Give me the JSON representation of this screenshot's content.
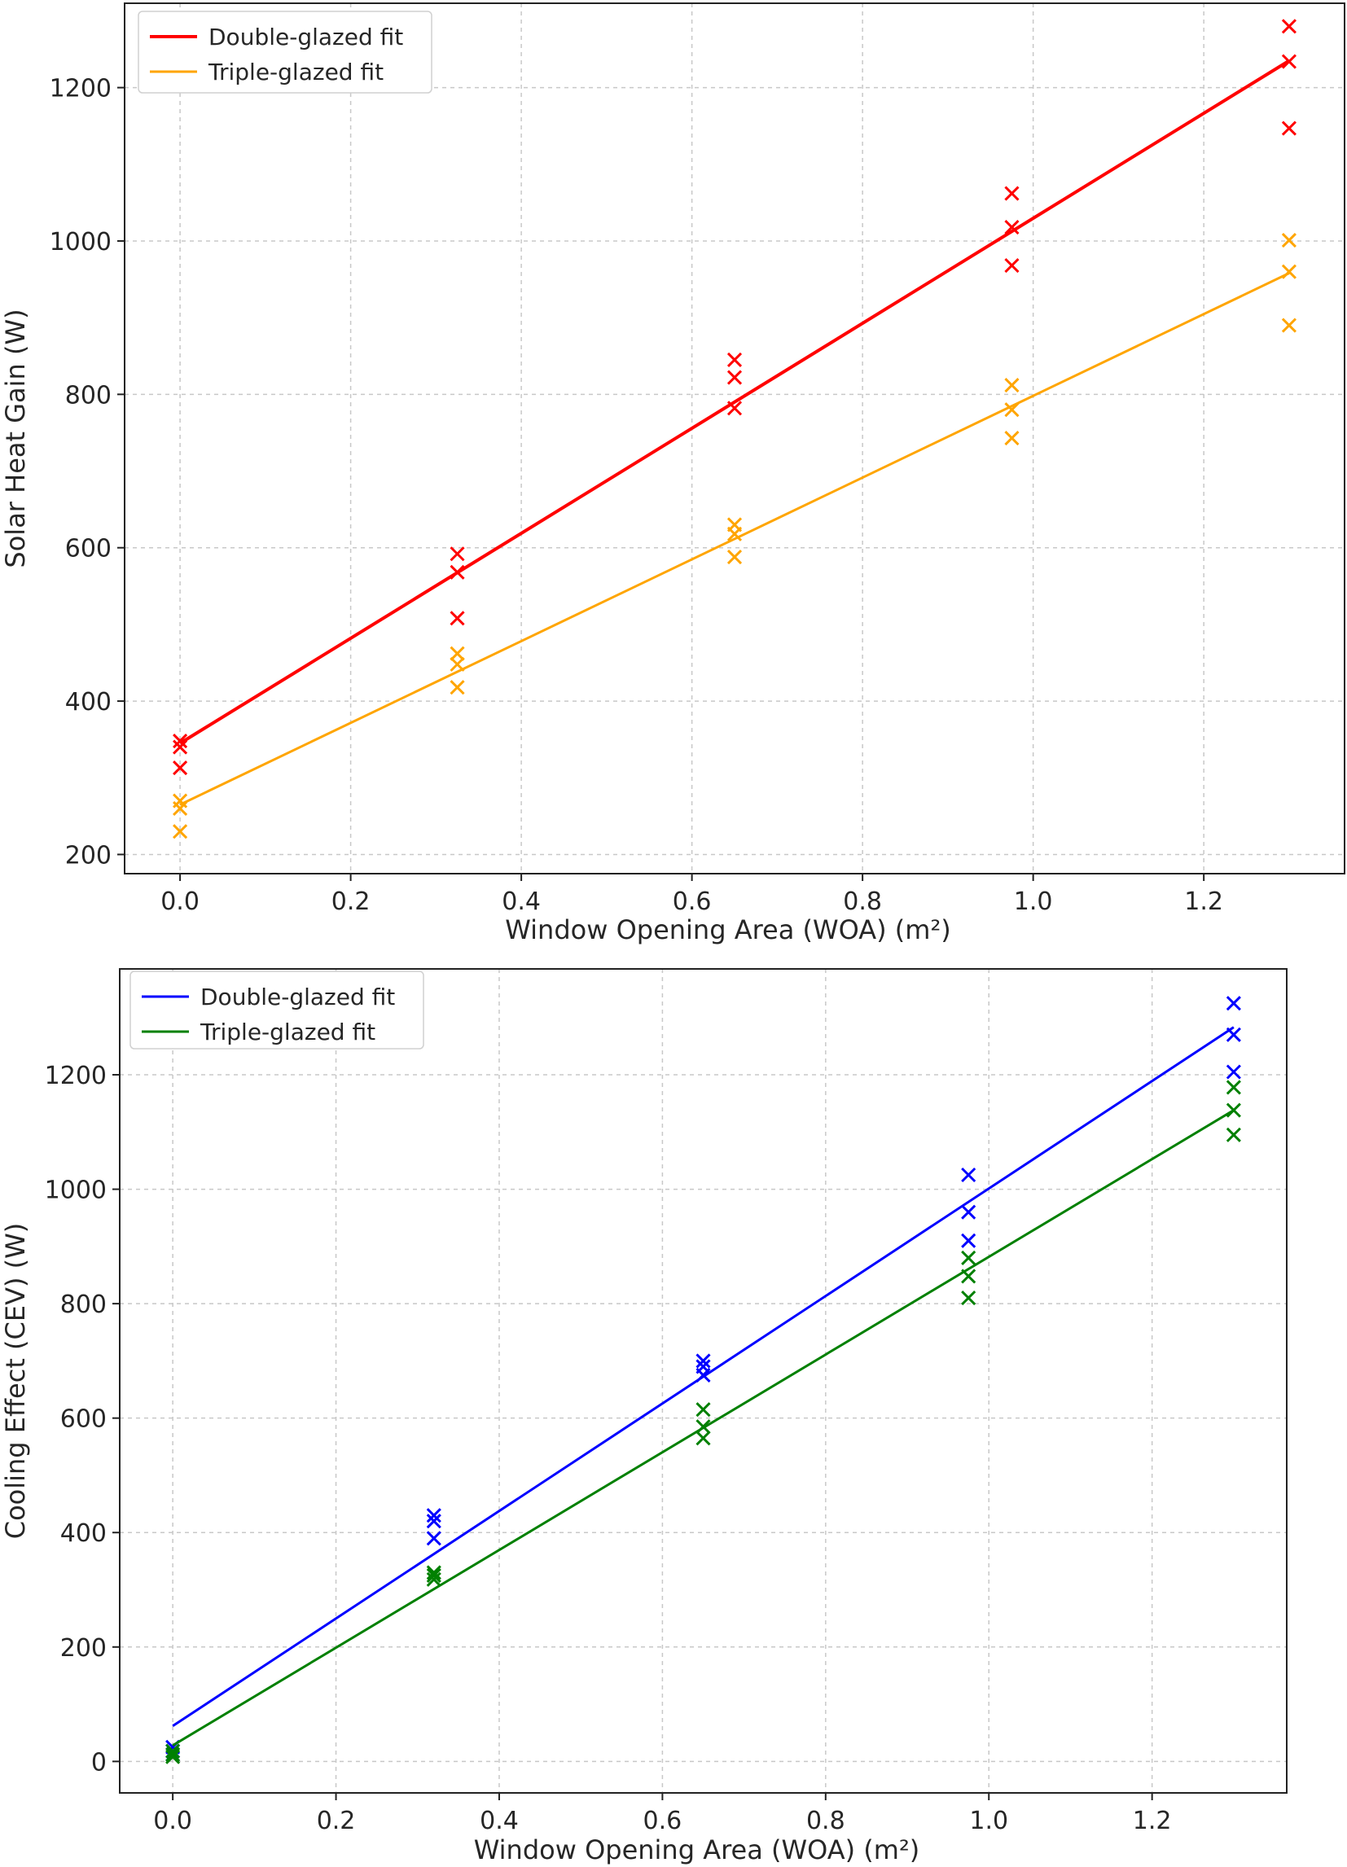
{
  "chart_data": [
    {
      "type": "scatter",
      "xlabel": "Window Opening Area (WOA) (m²)",
      "ylabel": "Solar Heat Gain (W)",
      "xlim": [
        -0.065,
        1.365
      ],
      "ylim": [
        175,
        1310
      ],
      "xticks": [
        0.0,
        0.2,
        0.4,
        0.6,
        0.8,
        1.0,
        1.2
      ],
      "yticks": [
        200,
        400,
        600,
        800,
        1000,
        1200
      ],
      "grid": true,
      "legend_position": "top-left",
      "series": [
        {
          "name": "Double-glazed fit",
          "color": "#ff0000",
          "line_width": 4,
          "fit": {
            "x": [
              0.0,
              1.3
            ],
            "y": [
              345,
              1235
            ]
          },
          "marker": "x",
          "points": [
            [
              0.0,
              348
            ],
            [
              0.0,
              340
            ],
            [
              0.0,
              313
            ],
            [
              0.325,
              592
            ],
            [
              0.325,
              568
            ],
            [
              0.325,
              508
            ],
            [
              0.65,
              845
            ],
            [
              0.65,
              822
            ],
            [
              0.65,
              782
            ],
            [
              0.975,
              1062
            ],
            [
              0.975,
              1018
            ],
            [
              0.975,
              968
            ],
            [
              1.3,
              1280
            ],
            [
              1.3,
              1234
            ],
            [
              1.3,
              1147
            ]
          ]
        },
        {
          "name": "Triple-glazed fit",
          "color": "#ffa500",
          "line_width": 3,
          "fit": {
            "x": [
              0.0,
              1.3
            ],
            "y": [
              265,
              958
            ]
          },
          "marker": "x",
          "points": [
            [
              0.0,
              270
            ],
            [
              0.0,
              260
            ],
            [
              0.0,
              230
            ],
            [
              0.325,
              462
            ],
            [
              0.325,
              448
            ],
            [
              0.325,
              418
            ],
            [
              0.65,
              630
            ],
            [
              0.65,
              618
            ],
            [
              0.65,
              588
            ],
            [
              0.975,
              812
            ],
            [
              0.975,
              780
            ],
            [
              0.975,
              743
            ],
            [
              1.3,
              1001
            ],
            [
              1.3,
              960
            ],
            [
              1.3,
              890
            ]
          ]
        }
      ]
    },
    {
      "type": "scatter",
      "xlabel": "Window Opening Area (WOA) (m²)",
      "ylabel": "Cooling Effect (CEV) (W)",
      "xlim": [
        -0.065,
        1.365
      ],
      "ylim": [
        -55,
        1385
      ],
      "xticks": [
        0.0,
        0.2,
        0.4,
        0.6,
        0.8,
        1.0,
        1.2
      ],
      "yticks": [
        0,
        200,
        400,
        600,
        800,
        1000,
        1200
      ],
      "grid": true,
      "legend_position": "top-left",
      "series": [
        {
          "name": "Double-glazed fit",
          "color": "#0000ff",
          "line_width": 3,
          "fit": {
            "x": [
              0.0,
              1.3
            ],
            "y": [
              62,
              1283
            ]
          },
          "marker": "x",
          "points": [
            [
              0.0,
              25
            ],
            [
              0.0,
              18
            ],
            [
              0.0,
              12
            ],
            [
              0.32,
              430
            ],
            [
              0.32,
              420
            ],
            [
              0.32,
              390
            ],
            [
              0.65,
              700
            ],
            [
              0.65,
              690
            ],
            [
              0.65,
              675
            ],
            [
              0.975,
              1025
            ],
            [
              0.975,
              960
            ],
            [
              0.975,
              910
            ],
            [
              1.3,
              1325
            ],
            [
              1.3,
              1270
            ],
            [
              1.3,
              1205
            ]
          ]
        },
        {
          "name": "Triple-glazed fit",
          "color": "#008000",
          "line_width": 3,
          "fit": {
            "x": [
              0.0,
              1.3
            ],
            "y": [
              28,
              1138
            ]
          },
          "marker": "x",
          "points": [
            [
              0.0,
              18
            ],
            [
              0.0,
              12
            ],
            [
              0.0,
              8
            ],
            [
              0.32,
              330
            ],
            [
              0.32,
              325
            ],
            [
              0.32,
              318
            ],
            [
              0.65,
              615
            ],
            [
              0.65,
              585
            ],
            [
              0.65,
              565
            ],
            [
              0.975,
              880
            ],
            [
              0.975,
              848
            ],
            [
              0.975,
              810
            ],
            [
              1.3,
              1178
            ],
            [
              1.3,
              1138
            ],
            [
              1.3,
              1095
            ]
          ]
        }
      ]
    }
  ]
}
